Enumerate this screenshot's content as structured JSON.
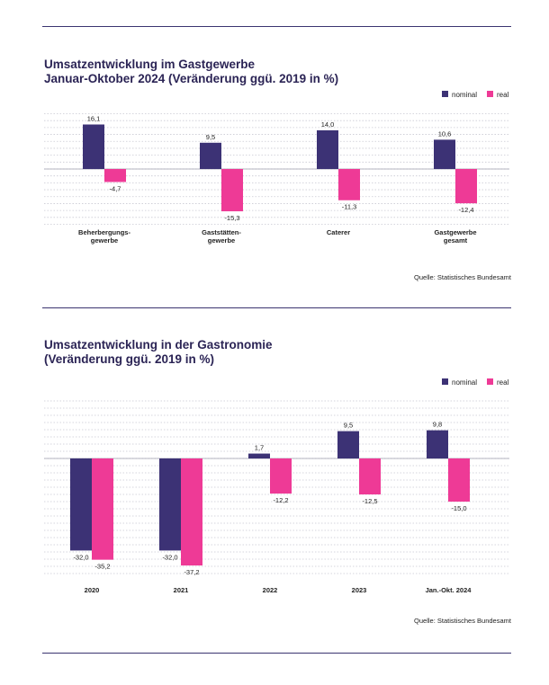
{
  "charts": [
    {
      "title_line1": "Umsatzentwicklung im Gastgewerbe",
      "title_line2": "Januar-Oktober 2024 (Veränderung ggü. 2019 in %)",
      "source": "Quelle: Statistisches Bundesamt"
    },
    {
      "title_line1": "Umsatzentwicklung in der Gastronomie",
      "title_line2": "(Veränderung ggü. 2019 in %)",
      "source": "Quelle: Statistisches Bundesamt"
    }
  ],
  "colors": {
    "nominal": "#3c3275",
    "real": "#ee3a96"
  },
  "chart_data": [
    {
      "type": "bar",
      "title": "Umsatzentwicklung im Gastgewerbe Januar-Oktober 2024 (Veränderung ggü. 2019 in %)",
      "categories": [
        [
          "Beherbergungs-",
          "gewerbe"
        ],
        [
          "Gaststätten-",
          "gewerbe"
        ],
        [
          "Caterer"
        ],
        [
          "Gastgewerbe",
          "gesamt"
        ]
      ],
      "series": [
        {
          "name": "nominal",
          "values": [
            16.1,
            9.5,
            14.0,
            10.6
          ],
          "labels": [
            "16,1",
            "9,5",
            "14,0",
            "10,6"
          ]
        },
        {
          "name": "real",
          "values": [
            -4.7,
            -15.3,
            -11.3,
            -12.4
          ],
          "labels": [
            "-4,7",
            "-15,3",
            "-11,3",
            "-12,4"
          ]
        }
      ],
      "ylim": [
        -20,
        20
      ],
      "grid": true,
      "legend": "top-right"
    },
    {
      "type": "bar",
      "title": "Umsatzentwicklung in der Gastronomie (Veränderung ggü. 2019 in %)",
      "categories": [
        [
          "2020"
        ],
        [
          "2021"
        ],
        [
          "2022"
        ],
        [
          "2023"
        ],
        [
          "Jan.-Okt. 2024"
        ]
      ],
      "series": [
        {
          "name": "nominal",
          "values": [
            -32.0,
            -32.0,
            1.7,
            9.5,
            9.8
          ],
          "labels": [
            "-32,0",
            "-32,0",
            "1,7",
            "9,5",
            "9,8"
          ]
        },
        {
          "name": "real",
          "values": [
            -35.2,
            -37.2,
            -12.2,
            -12.5,
            -15.0
          ],
          "labels": [
            "-35,2",
            "-37,2",
            "-12,2",
            "-12,5",
            "-15,0"
          ]
        }
      ],
      "ylim": [
        -40,
        20
      ],
      "grid": true,
      "legend": "top-right"
    }
  ]
}
